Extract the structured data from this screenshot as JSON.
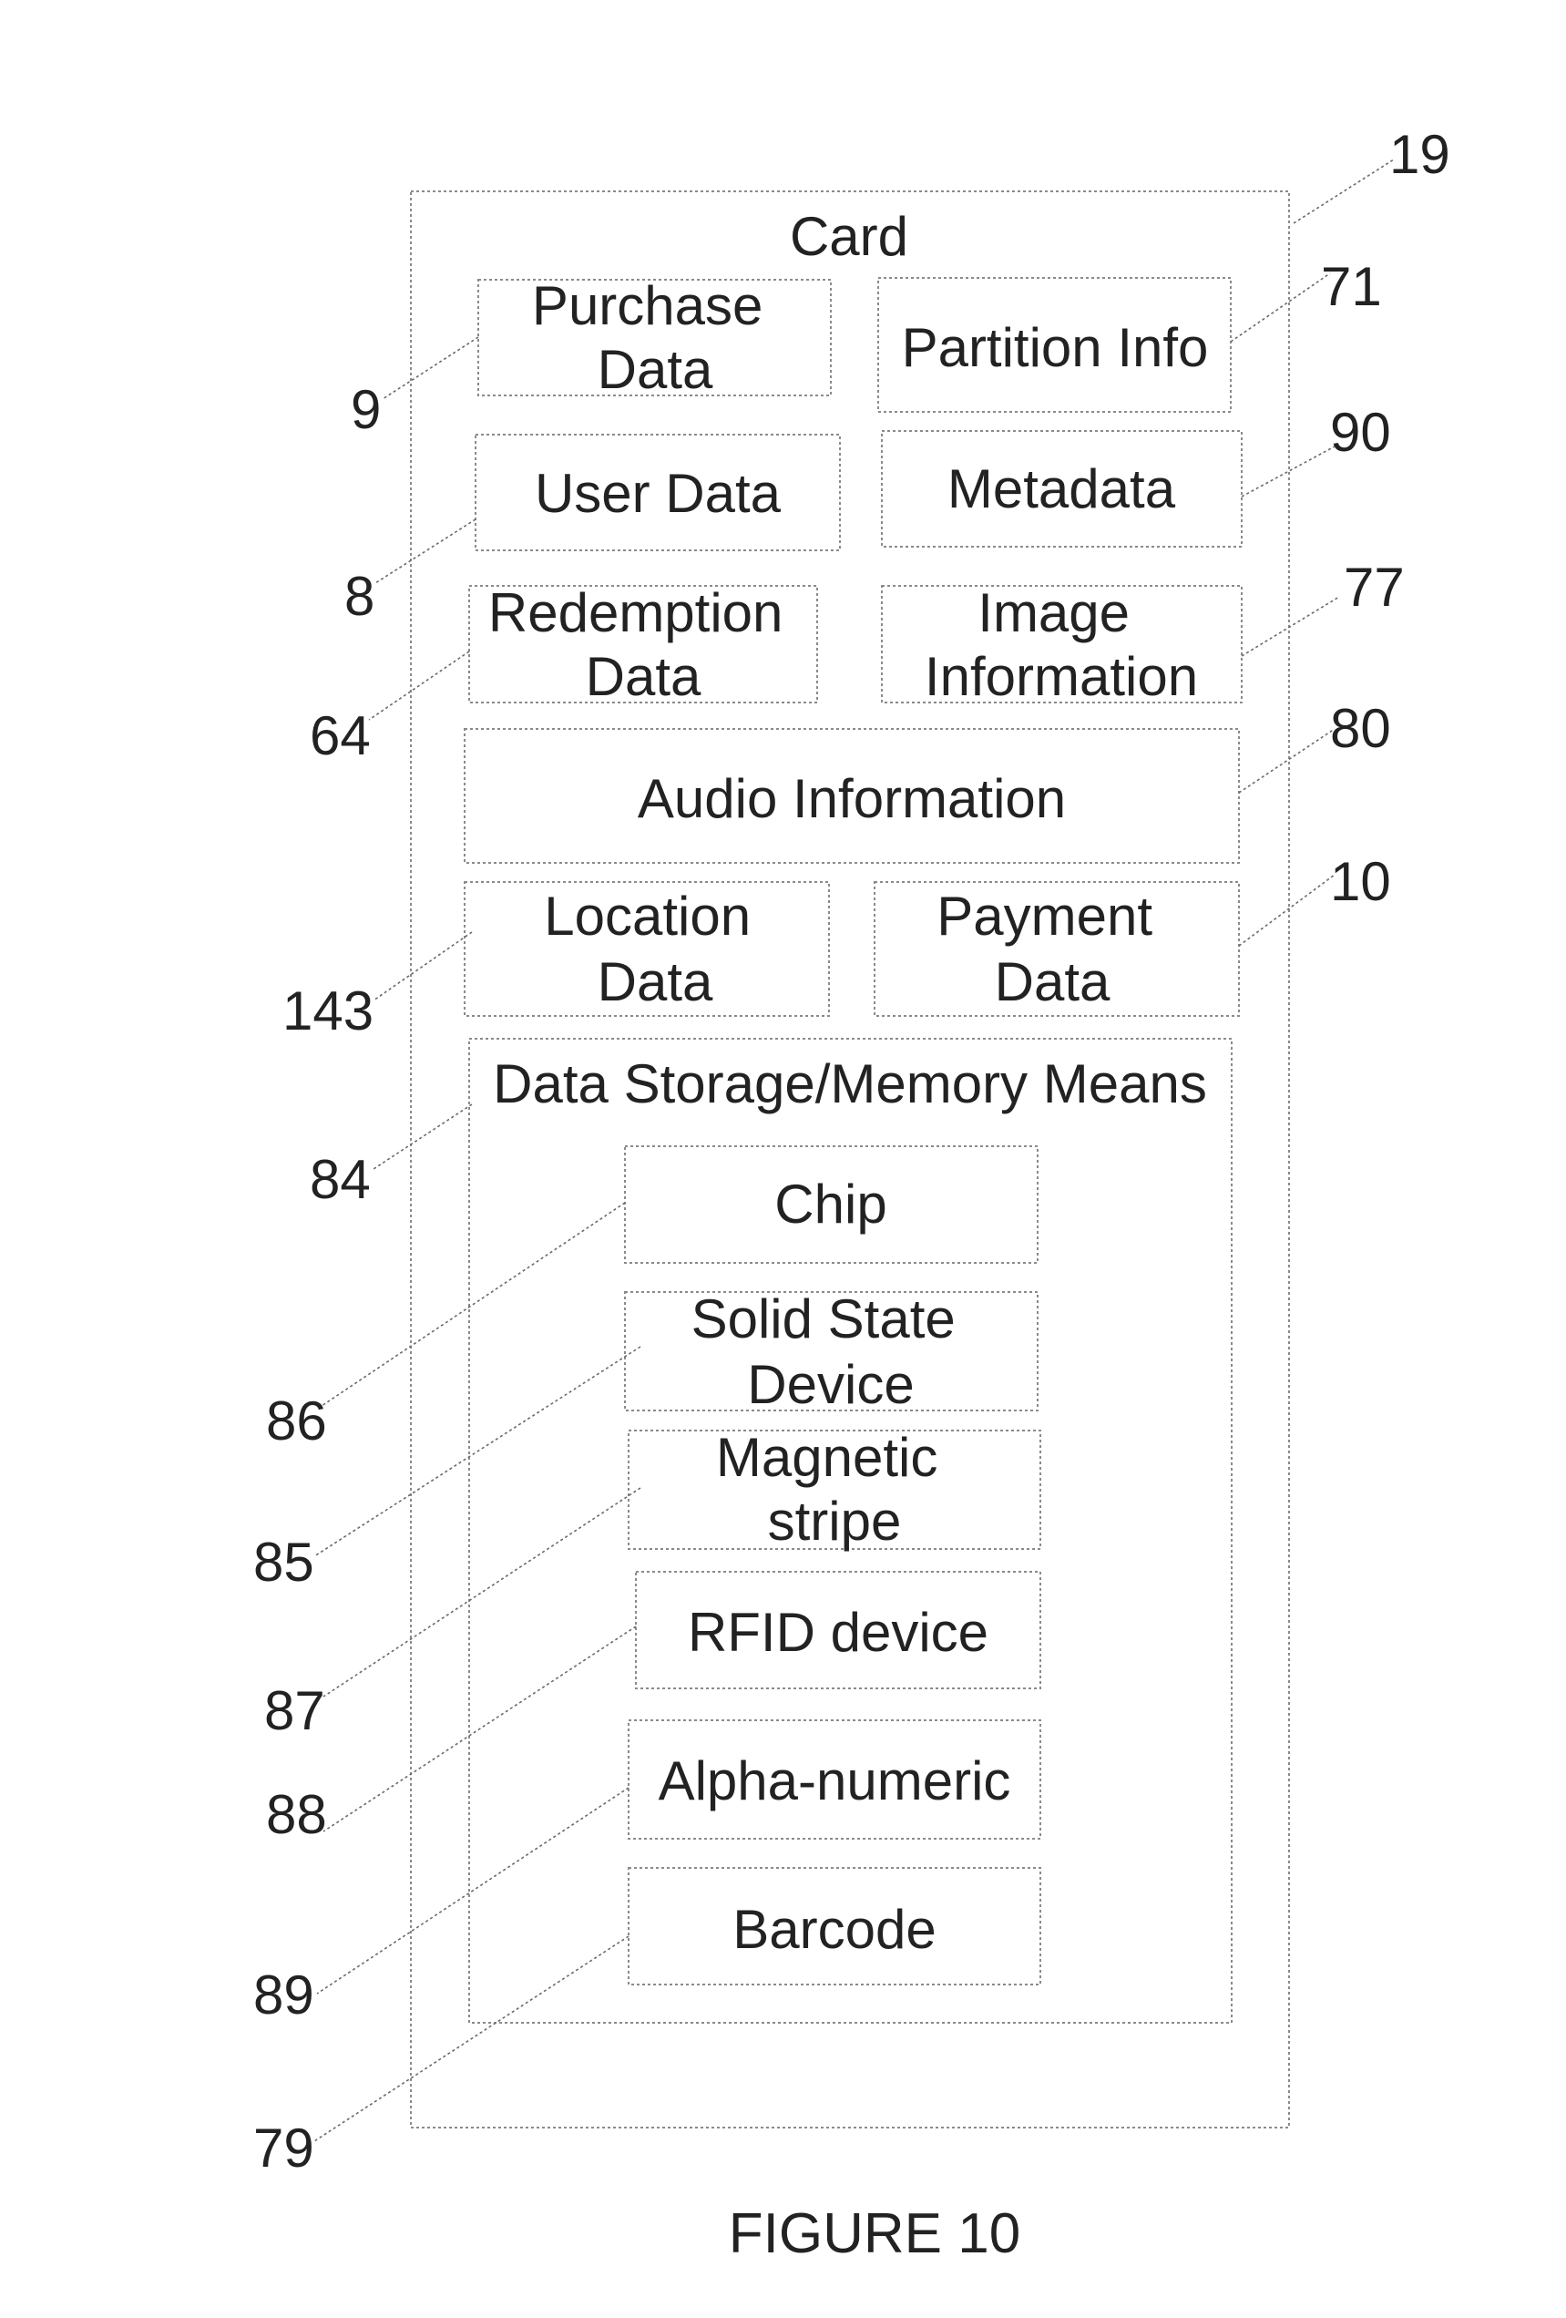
{
  "card": {
    "title": "Card",
    "ref": "19"
  },
  "boxes": {
    "purchase_data": {
      "lines": [
        "Purchase",
        "Data"
      ],
      "ref": "9"
    },
    "partition_info": {
      "lines": [
        "Partition Info"
      ],
      "ref": "71"
    },
    "user_data": {
      "lines": [
        "User Data"
      ],
      "ref": "8"
    },
    "metadata": {
      "lines": [
        "Metadata"
      ],
      "ref": "90"
    },
    "redemption_data": {
      "lines": [
        "Redemption",
        "Data"
      ],
      "ref": "64"
    },
    "image_information": {
      "lines": [
        "Image",
        "Information"
      ],
      "ref": "77"
    },
    "audio_information": {
      "lines": [
        "Audio Information"
      ],
      "ref": "80"
    },
    "location_data": {
      "lines": [
        "Location",
        "Data"
      ],
      "ref": "143"
    },
    "payment_data": {
      "lines": [
        "Payment",
        "Data"
      ],
      "ref": "10"
    }
  },
  "storage": {
    "title": "Data Storage/Memory Means",
    "ref": "84",
    "items": {
      "chip": {
        "lines": [
          "Chip"
        ],
        "ref": "86"
      },
      "solid_state_device": {
        "lines": [
          "Solid State",
          "Device"
        ],
        "ref": "85"
      },
      "magnetic_stripe": {
        "lines": [
          "Magnetic",
          "stripe"
        ],
        "ref": "87"
      },
      "rfid_device": {
        "lines": [
          "RFID device"
        ],
        "ref": "88"
      },
      "alpha_numeric": {
        "lines": [
          "Alpha-numeric"
        ],
        "ref": "89"
      },
      "barcode": {
        "lines": [
          "Barcode"
        ],
        "ref": "79"
      }
    }
  },
  "caption": "FIGURE 10"
}
